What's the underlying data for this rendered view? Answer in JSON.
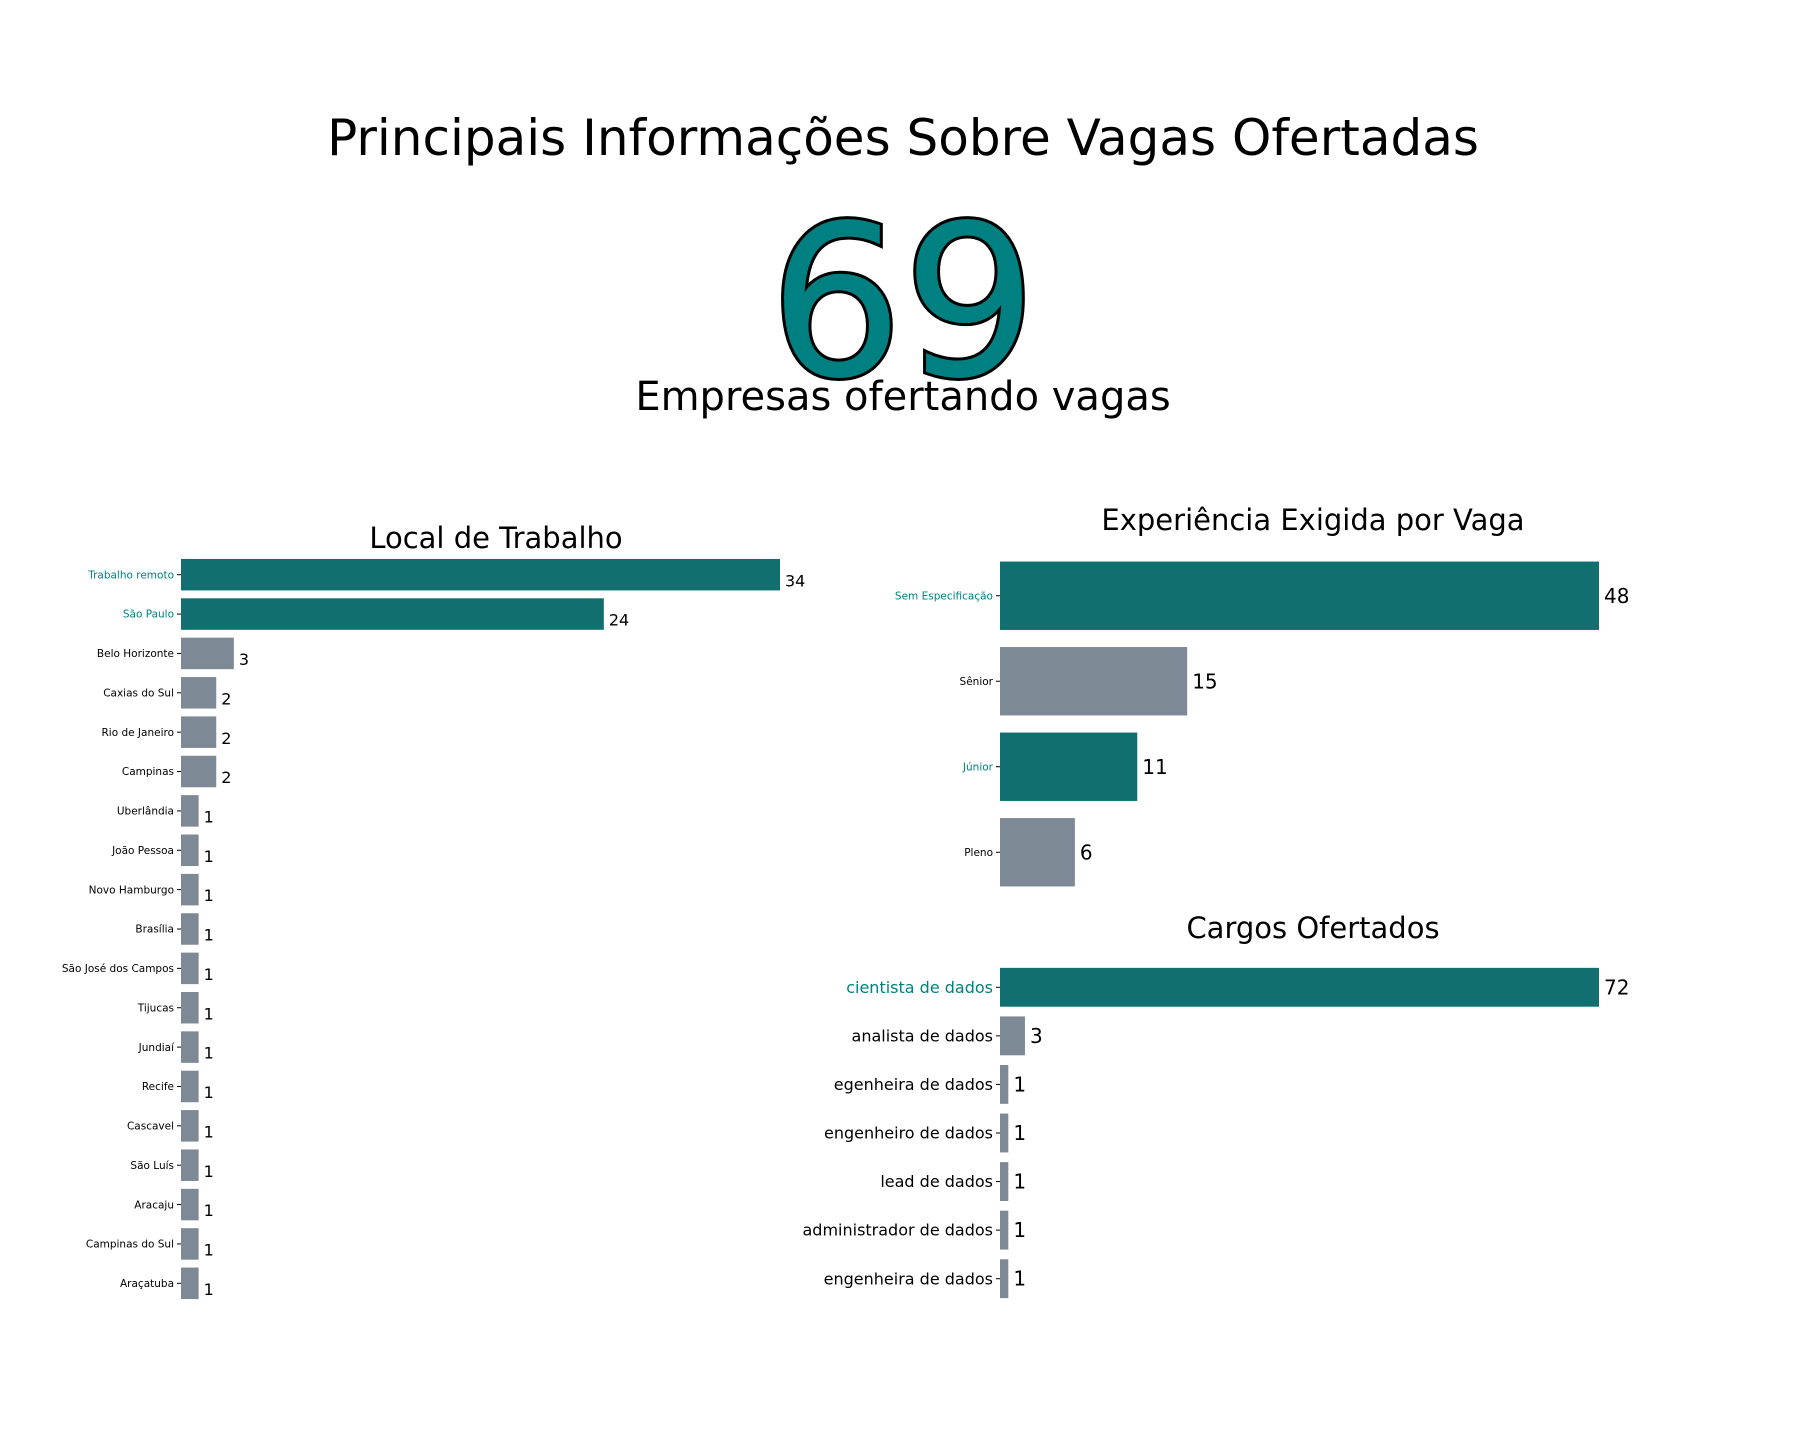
{
  "header": {
    "title": "Principais Informações Sobre Vagas Ofertadas",
    "kpi_value": "69",
    "kpi_label": "Empresas ofertando vagas"
  },
  "colors": {
    "highlight": "#11706f",
    "highlight_text": "#008080",
    "muted": "#7d8995",
    "kpi_fill": "#008080",
    "kpi_stroke": "#000000"
  },
  "chart_data": [
    {
      "type": "bar",
      "orientation": "horizontal",
      "title": "Local de Trabalho",
      "xlabel": "",
      "ylabel": "",
      "grid": false,
      "categories": [
        "Trabalho remoto",
        "São Paulo",
        "Belo Horizonte",
        "Caxias do Sul",
        "Rio de Janeiro",
        "Campinas",
        "Uberlândia",
        "João Pessoa",
        "Novo Hamburgo",
        "Brasília",
        "São José dos Campos",
        "Tijucas",
        "Jundiaí",
        "Recife",
        "Cascavel",
        "São Luís",
        "Aracaju",
        "Campinas do Sul",
        "Araçatuba"
      ],
      "values": [
        34,
        24,
        3,
        2,
        2,
        2,
        1,
        1,
        1,
        1,
        1,
        1,
        1,
        1,
        1,
        1,
        1,
        1,
        1
      ],
      "highlight": [
        true,
        true,
        false,
        false,
        false,
        false,
        false,
        false,
        false,
        false,
        false,
        false,
        false,
        false,
        false,
        false,
        false,
        false,
        false
      ],
      "data_labels": [
        "34",
        "24",
        "3",
        "2",
        "2",
        "2",
        "1",
        "1",
        "1",
        "1",
        "1",
        "1",
        "1",
        "1",
        "1",
        "1",
        "1",
        "1",
        "1"
      ]
    },
    {
      "type": "bar",
      "orientation": "horizontal",
      "title": "Experiência Exigida por Vaga",
      "xlabel": "",
      "ylabel": "",
      "grid": false,
      "categories": [
        "Sem Especificação",
        "Sênior",
        "Júnior",
        "Pleno"
      ],
      "values": [
        48,
        15,
        11,
        6
      ],
      "highlight": [
        true,
        false,
        true,
        false
      ],
      "data_labels": [
        "48",
        "15",
        "11",
        "6"
      ]
    },
    {
      "type": "bar",
      "orientation": "horizontal",
      "title": "Cargos Ofertados",
      "xlabel": "",
      "ylabel": "",
      "grid": false,
      "categories": [
        "cientista de dados",
        "analista de dados",
        "egenheira de dados",
        "engenheiro de dados",
        "lead de dados",
        "administrador de dados",
        "engenheira de dados"
      ],
      "values": [
        72,
        3,
        1,
        1,
        1,
        1,
        1
      ],
      "highlight": [
        true,
        false,
        false,
        false,
        false,
        false,
        false
      ],
      "data_labels": [
        "72",
        "3",
        "1",
        "1",
        "1",
        "1",
        "1"
      ]
    }
  ]
}
